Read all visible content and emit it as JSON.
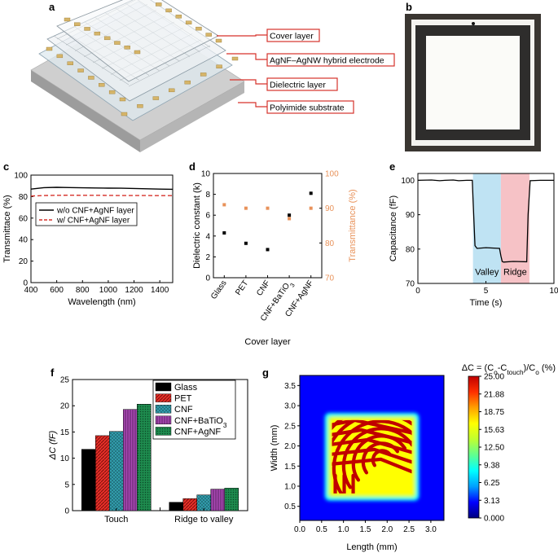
{
  "panels": {
    "a": "a",
    "b": "b",
    "c": "c",
    "d": "d",
    "e": "e",
    "f": "f",
    "g": "g"
  },
  "schematic": {
    "callouts": [
      "Cover layer",
      "AgNF–AgNW hybrid electrode",
      "Dielectric layer",
      "Polyimide substrate"
    ],
    "colors": {
      "callout_border": "#d6322b",
      "pad": "#d6b56a",
      "substrate": "#c8c8c8"
    }
  },
  "photo": {
    "colors": {
      "frame": "#3a3631",
      "tape": "#2e2d2c",
      "surface": "#f4f3ef"
    }
  },
  "chart_data": [
    {
      "panel": "c",
      "type": "line",
      "xlabel": "Wavelength (nm)",
      "ylabel": "Transmittace (%)",
      "xlim": [
        400,
        1500
      ],
      "ylim": [
        0,
        100
      ],
      "xticks": [
        400,
        600,
        800,
        1000,
        1200,
        1400
      ],
      "yticks": [
        0,
        20,
        40,
        60,
        80,
        100
      ],
      "legend_position": "center",
      "series": [
        {
          "name": "w/o CNF+AgNF layer",
          "color": "#000000",
          "dash": "solid",
          "x": [
            400,
            500,
            600,
            700,
            800,
            900,
            1000,
            1100,
            1200,
            1300,
            1400,
            1500
          ],
          "y": [
            87,
            88.3,
            88.6,
            88.4,
            88.2,
            88,
            87.9,
            87.8,
            87.6,
            87.3,
            87,
            86.8
          ]
        },
        {
          "name": "w/  CNF+AgNF layer",
          "color": "#d6322b",
          "dash": "dashed",
          "x": [
            400,
            500,
            600,
            700,
            800,
            900,
            1000,
            1100,
            1200,
            1300,
            1400,
            1500
          ],
          "y": [
            80.5,
            81,
            81.2,
            81.3,
            81.2,
            81.2,
            81.1,
            81,
            81,
            81,
            80.9,
            80.9
          ]
        }
      ]
    },
    {
      "panel": "d",
      "type": "scatter",
      "xlabel": "Cover layer",
      "ylabel": "Dielectric constant (k)",
      "ylabel2": "Transmittance (%)",
      "categories": [
        "Glass",
        "PET",
        "CNF",
        "CNF+BaTiO3",
        "CNF+AgNF"
      ],
      "ylim": [
        0,
        10
      ],
      "ylim2": [
        70,
        100
      ],
      "yticks": [
        0,
        2,
        4,
        6,
        8,
        10
      ],
      "yticks2": [
        70,
        80,
        90,
        100
      ],
      "series": [
        {
          "name": "Dielectric constant",
          "axis": "left",
          "color": "#000000",
          "values": [
            4.3,
            3.3,
            2.7,
            6.0,
            8.1
          ]
        },
        {
          "name": "Transmittance",
          "axis": "right",
          "color": "#e8925a",
          "values": [
            91,
            90,
            90,
            87,
            90
          ]
        }
      ]
    },
    {
      "panel": "e",
      "type": "line",
      "xlabel": "Time (s)",
      "ylabel": "Capacitance (fF)",
      "xlim": [
        0,
        10
      ],
      "ylim": [
        70,
        102
      ],
      "xticks": [
        0,
        5,
        10
      ],
      "yticks": [
        70,
        80,
        90,
        100
      ],
      "regions": [
        {
          "label": "Valley",
          "x0": 4.05,
          "x1": 6.1,
          "color": "#bfe3f3"
        },
        {
          "label": "Ridge",
          "x0": 6.1,
          "x1": 8.2,
          "color": "#f6c2c6"
        }
      ],
      "series": [
        {
          "name": "capacitance",
          "color": "#000000",
          "x": [
            0,
            1,
            1.6,
            2,
            2.6,
            3,
            3.6,
            4.0,
            4.05,
            4.2,
            4.35,
            5,
            6.0,
            6.1,
            6.2,
            6.3,
            7,
            8.0,
            8.1,
            8.25,
            9,
            10
          ],
          "y": [
            100,
            100.1,
            99.9,
            100,
            100.1,
            99.9,
            100,
            100,
            95,
            81,
            80.2,
            80.4,
            80.2,
            78,
            76.4,
            76.2,
            76.4,
            76.3,
            90,
            99.9,
            100,
            100
          ]
        }
      ]
    },
    {
      "panel": "f",
      "type": "bar",
      "ylabel": "ΔC (fF)",
      "categories": [
        "Touch",
        "Ridge to valley"
      ],
      "ylim": [
        0,
        25
      ],
      "yticks": [
        0,
        5,
        10,
        15,
        20,
        25
      ],
      "legend_position": "top-right",
      "series": [
        {
          "name": "Glass",
          "color": "#000000",
          "pattern": "solid",
          "values": [
            11.7,
            1.6
          ]
        },
        {
          "name": "PET",
          "color": "#e8302a",
          "pattern": "diagonal",
          "values": [
            14.3,
            2.3
          ]
        },
        {
          "name": "CNF",
          "color": "#35a3b3",
          "pattern": "crosshatch",
          "values": [
            15.1,
            3.0
          ]
        },
        {
          "name": "CNF+BaTiO3",
          "color": "#a848b2",
          "pattern": "vertical",
          "values": [
            19.3,
            4.1
          ]
        },
        {
          "name": "CNF+AgNF",
          "color": "#1e8b4e",
          "pattern": "dots",
          "values": [
            20.3,
            4.3
          ]
        }
      ]
    },
    {
      "panel": "g",
      "type": "heatmap",
      "title": "ΔC = (Co-Ctouch)/Co (%)",
      "xlabel": "Length (mm)",
      "ylabel": "Width (mm)",
      "xlim": [
        0,
        3.3
      ],
      "ylim": [
        0.15,
        3.75
      ],
      "xticks": [
        "0.0",
        "0.5",
        "1.0",
        "1.5",
        "2.0",
        "2.5",
        "3.0"
      ],
      "yticks": [
        "0.5",
        "1.0",
        "1.5",
        "2.0",
        "2.5",
        "3.0",
        "3.5"
      ],
      "colorbar": {
        "min": 0,
        "max": 25,
        "labels": [
          "25.00",
          "21.88",
          "18.75",
          "15.63",
          "12.50",
          "9.38",
          "6.25",
          "3.13",
          "0.000"
        ],
        "colors": [
          "#000080",
          "#0000ff",
          "#00a0ff",
          "#00ffff",
          "#60ff90",
          "#c0ff30",
          "#ffff00",
          "#ffa000",
          "#ff3000",
          "#c00000"
        ]
      },
      "background_value": 3.13,
      "fingerprint_region": {
        "x": [
          0.7,
          2.6
        ],
        "y": [
          0.78,
          2.68
        ],
        "levels": {
          "plateau": 17.5,
          "ridge": 24
        }
      }
    }
  ]
}
